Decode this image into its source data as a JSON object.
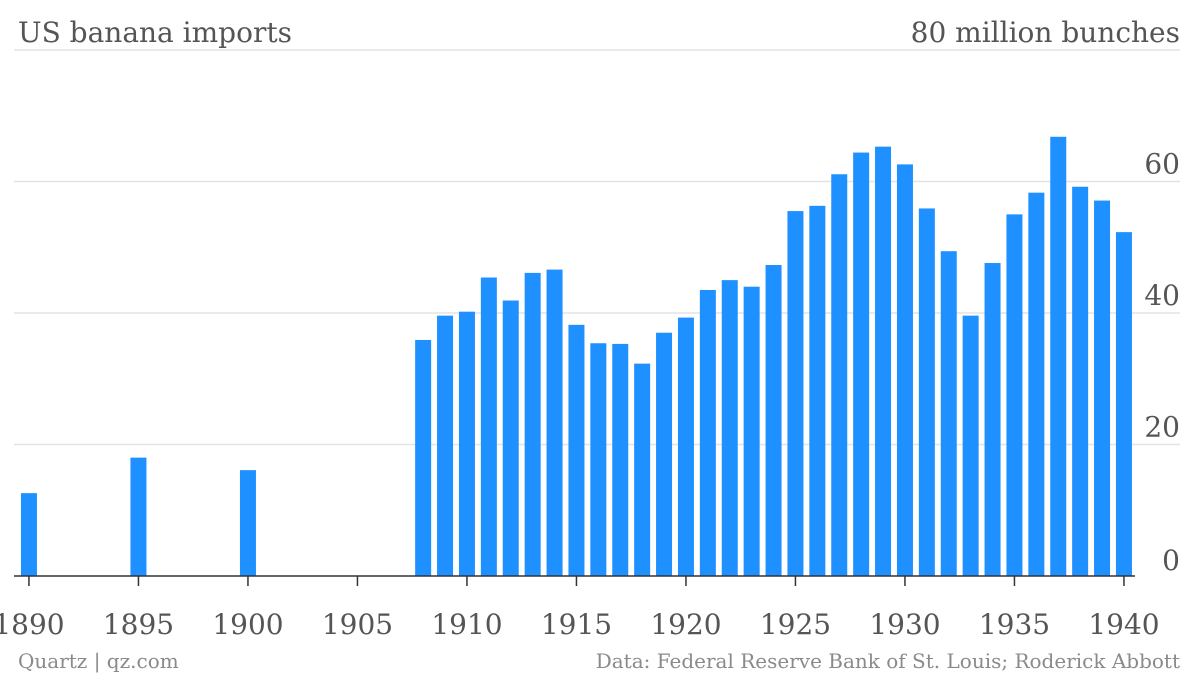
{
  "chart_data": {
    "type": "bar",
    "title": "US banana imports",
    "unit_label": "80 million bunches",
    "xlabel": "",
    "ylabel": "",
    "ylim": [
      0,
      80
    ],
    "y_ticks": [
      0,
      20,
      40,
      60
    ],
    "x_ticks": [
      "1890",
      "1895",
      "1900",
      "1905",
      "1910",
      "1915",
      "1920",
      "1925",
      "1930",
      "1935",
      "1940"
    ],
    "grid": true,
    "x": [
      1890,
      1895,
      1900,
      1908,
      1909,
      1910,
      1911,
      1912,
      1913,
      1914,
      1915,
      1916,
      1917,
      1918,
      1919,
      1920,
      1921,
      1922,
      1923,
      1924,
      1925,
      1926,
      1927,
      1928,
      1929,
      1930,
      1931,
      1932,
      1933,
      1934,
      1935,
      1936,
      1937,
      1938,
      1939,
      1940
    ],
    "values": [
      12.6,
      18.0,
      16.1,
      35.9,
      39.6,
      40.2,
      45.4,
      41.9,
      46.1,
      46.6,
      38.2,
      35.4,
      35.3,
      32.3,
      37.0,
      39.3,
      43.5,
      45.0,
      44.0,
      47.3,
      55.5,
      56.3,
      61.1,
      64.4,
      65.3,
      62.6,
      55.9,
      49.4,
      39.6,
      47.6,
      55.0,
      58.3,
      66.8,
      59.2,
      57.1,
      52.3
    ],
    "bar_color": "#1e90ff"
  },
  "footer": {
    "left": "Quartz | qz.com",
    "right": "Data: Federal Reserve Bank of St. Louis; Roderick Abbott"
  }
}
